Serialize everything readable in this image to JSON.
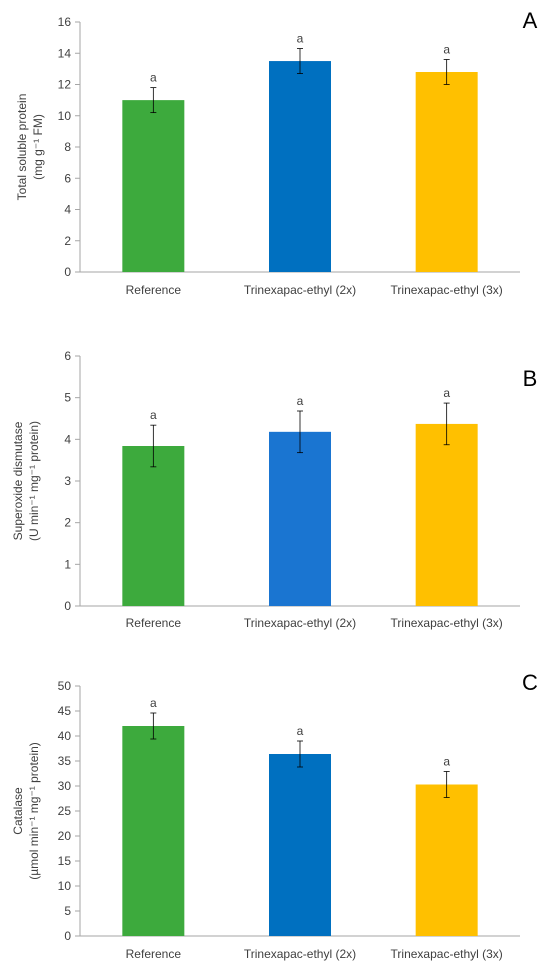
{
  "chart_data": [
    {
      "type": "bar",
      "panel": "A",
      "categories": [
        "Reference",
        "Trinexapac-ethyl (2x)",
        "Trinexapac-ethyl (3x)"
      ],
      "values": [
        11.0,
        13.5,
        12.8
      ],
      "errors": [
        0.8,
        0.8,
        0.8
      ],
      "significance": [
        "a",
        "a",
        "a"
      ],
      "ylabel_line1": "Total soluble protein",
      "ylabel_line2": "(mg g⁻¹ FM)",
      "ylim": [
        0,
        16
      ],
      "yticks": [
        0,
        2,
        4,
        6,
        8,
        10,
        12,
        14,
        16
      ],
      "colors": [
        "#3DAA3D",
        "#0070C0",
        "#FFC000"
      ]
    },
    {
      "type": "bar",
      "panel": "B",
      "categories": [
        "Reference",
        "Trinexapac-ethyl (2x)",
        "Trinexapac-ethyl (3x)"
      ],
      "values": [
        3.84,
        4.18,
        4.37
      ],
      "errors": [
        0.5,
        0.5,
        0.5
      ],
      "significance": [
        "a",
        "a",
        "a"
      ],
      "ylabel_line1": "Superoxide dismutase",
      "ylabel_line2": "(U min⁻¹ mg⁻¹ protein)",
      "ylim": [
        0,
        6
      ],
      "yticks": [
        0,
        1,
        2,
        3,
        4,
        5,
        6
      ],
      "colors": [
        "#3DAA3D",
        "#1A75D1",
        "#FFC000"
      ]
    },
    {
      "type": "bar",
      "panel": "C",
      "categories": [
        "Reference",
        "Trinexapac-ethyl (2x)",
        "Trinexapac-ethyl (3x)"
      ],
      "values": [
        42.0,
        36.4,
        30.3
      ],
      "errors": [
        2.6,
        2.6,
        2.6
      ],
      "significance": [
        "a",
        "a",
        "a"
      ],
      "ylabel_line1": "Catalase",
      "ylabel_line2": "(µmol min⁻¹ mg⁻¹ protein)",
      "ylim": [
        0,
        50
      ],
      "yticks": [
        0,
        5,
        10,
        15,
        20,
        25,
        30,
        35,
        40,
        45,
        50
      ],
      "colors": [
        "#3DAA3D",
        "#0070C0",
        "#FFC000"
      ]
    }
  ]
}
